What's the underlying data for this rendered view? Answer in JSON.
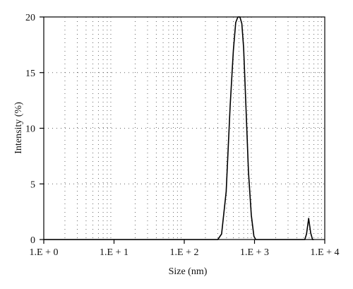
{
  "chart_data": {
    "type": "line",
    "xlabel": "Size (nm)",
    "ylabel": "Intensity (%)",
    "x_scale": "log",
    "xlim": [
      1,
      10000
    ],
    "ylim": [
      0,
      20
    ],
    "x_ticks": [
      {
        "value": 1,
        "label": "1.E + 0"
      },
      {
        "value": 10,
        "label": "1.E + 1"
      },
      {
        "value": 100,
        "label": "1.E + 2"
      },
      {
        "value": 1000,
        "label": "1.E + 3"
      },
      {
        "value": 10000,
        "label": "1.E + 4"
      }
    ],
    "y_ticks": [
      {
        "value": 0,
        "label": "0"
      },
      {
        "value": 5,
        "label": "5"
      },
      {
        "value": 10,
        "label": "10"
      },
      {
        "value": 15,
        "label": "15"
      },
      {
        "value": 20,
        "label": "20"
      }
    ],
    "grid": true,
    "series": [
      {
        "x": [
          1,
          300,
          340,
          395,
          450,
          500,
          540,
          580,
          620,
          660,
          700,
          760,
          820,
          900,
          980,
          1040,
          1100,
          1500,
          3000,
          5200,
          5500,
          5900,
          6300,
          6700,
          7000
        ],
        "y": [
          0,
          0,
          0.5,
          4.3,
          12,
          17,
          19.5,
          20,
          20,
          19.4,
          17.2,
          11.5,
          6.1,
          2.2,
          0.3,
          0,
          0,
          0,
          0,
          0,
          0.5,
          1.9,
          0.6,
          0,
          0
        ]
      }
    ]
  }
}
